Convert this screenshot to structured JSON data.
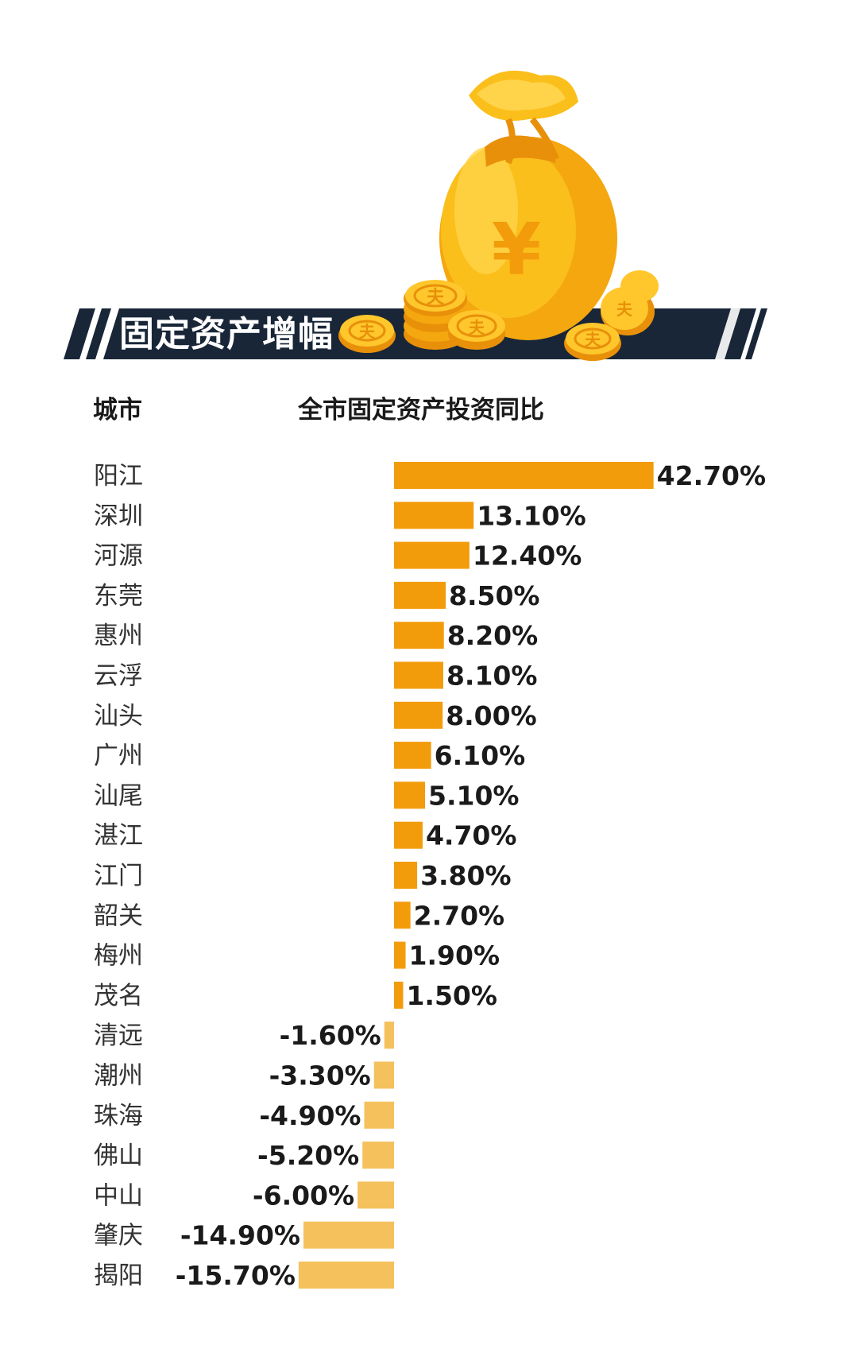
{
  "header": {
    "title": "固定资产增幅",
    "coin_symbol": "夫",
    "bag_symbol": "¥"
  },
  "columns": {
    "city": "城市",
    "value": "全市固定资产投资同比"
  },
  "colors": {
    "positive_bar": "#F39C0B",
    "negative_bar": "#F5C15C",
    "banner": "#182638",
    "label_text": "#1a1a1a",
    "city_text": "#333333"
  },
  "chart_data": {
    "type": "bar",
    "orientation": "horizontal",
    "categories": [
      "阳江",
      "深圳",
      "河源",
      "东莞",
      "惠州",
      "云浮",
      "汕头",
      "广州",
      "汕尾",
      "湛江",
      "江门",
      "韶关",
      "梅州",
      "茂名",
      "清远",
      "潮州",
      "珠海",
      "佛山",
      "中山",
      "肇庆",
      "揭阳"
    ],
    "values": [
      42.7,
      13.1,
      12.4,
      8.5,
      8.2,
      8.1,
      8.0,
      6.1,
      5.1,
      4.7,
      3.8,
      2.7,
      1.9,
      1.5,
      -1.6,
      -3.3,
      -4.9,
      -5.2,
      -6.0,
      -14.9,
      -15.7
    ],
    "labels": [
      "42.70%",
      "13.10%",
      "12.40%",
      "8.50%",
      "8.20%",
      "8.10%",
      "8.00%",
      "6.10%",
      "5.10%",
      "4.70%",
      "3.80%",
      "2.70%",
      "1.90%",
      "1.50%",
      "-1.60%",
      "-3.30%",
      "-4.90%",
      "-5.20%",
      "-6.00%",
      "-14.90%",
      "-15.70%"
    ],
    "unit": "%",
    "title": "",
    "xlabel": "",
    "ylabel": "",
    "grid": false,
    "legend": "none"
  }
}
